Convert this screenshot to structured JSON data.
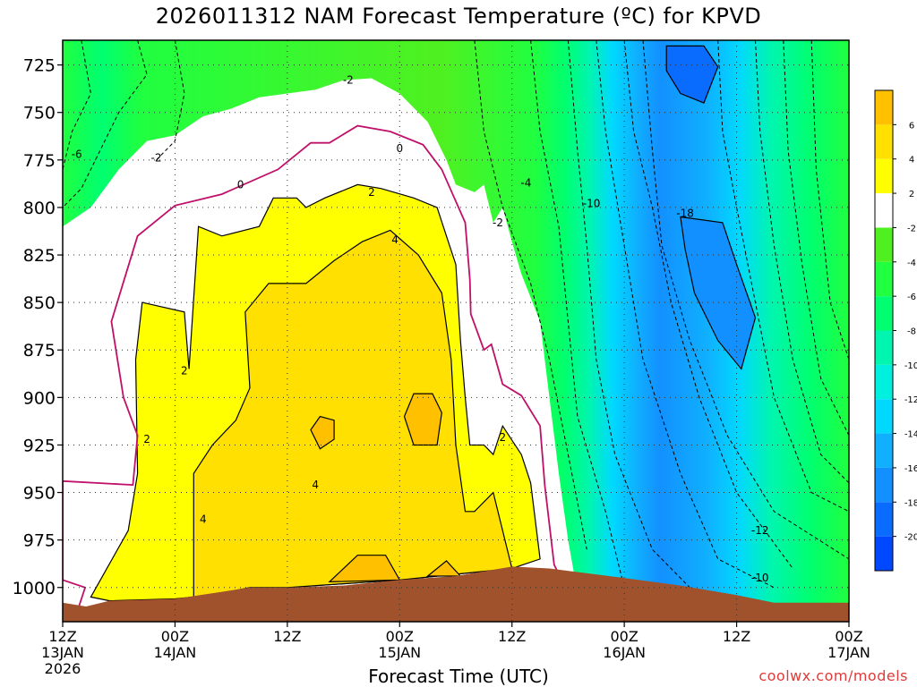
{
  "title": "2026011312 NAM Forecast Temperature (ºC) for KPVD",
  "xaxis_title": "Forecast Time (UTC)",
  "credit": "coolwx.com/models",
  "colors": {
    "ground": "#a0522d",
    "freezing_line": "#c0106a",
    "scale": [
      "#0048ff",
      "#0a6cff",
      "#1290ff",
      "#10b0ff",
      "#00d8ff",
      "#00f0e0",
      "#00f5b0",
      "#00ff70",
      "#20ff40",
      "#50f020",
      "#ffffff",
      "#ffff00",
      "#ffe000",
      "#ffc000"
    ]
  },
  "chart_data": {
    "type": "heatmap",
    "title": "2026011312 NAM Forecast Temperature (ºC) for KPVD",
    "xlabel": "Forecast Time (UTC)",
    "ylabel": "",
    "y_units": "hPa",
    "x_units": "hours",
    "xlim": [
      0,
      84
    ],
    "ylim": [
      712,
      1018
    ],
    "y_ticks": [
      725,
      750,
      775,
      800,
      825,
      850,
      875,
      900,
      925,
      950,
      975,
      1000
    ],
    "x_ticks": [
      {
        "hour": 0,
        "lines": [
          "12Z",
          "13JAN",
          "2026"
        ]
      },
      {
        "hour": 12,
        "lines": [
          "00Z",
          "14JAN"
        ]
      },
      {
        "hour": 24,
        "lines": [
          "12Z"
        ]
      },
      {
        "hour": 36,
        "lines": [
          "00Z",
          "15JAN"
        ]
      },
      {
        "hour": 48,
        "lines": [
          "12Z"
        ]
      },
      {
        "hour": 60,
        "lines": [
          "00Z",
          "16JAN"
        ]
      },
      {
        "hour": 72,
        "lines": [
          "12Z"
        ]
      },
      {
        "hour": 84,
        "lines": [
          "00Z",
          "17JAN"
        ]
      }
    ],
    "grid": true,
    "colorbar": {
      "placement": "right",
      "bounds": [
        -22,
        -20,
        -18,
        -16,
        -14,
        -12,
        -10,
        -8,
        -6,
        -4,
        -2,
        2,
        4,
        6,
        8
      ],
      "labels": [
        "6",
        "4",
        "2",
        "-2",
        "-4",
        "-6",
        "-8",
        "-10",
        "-12",
        "-14",
        "-16",
        "-18",
        "-20"
      ]
    },
    "contour_labels": [
      {
        "text": "-2",
        "hour": 30.5,
        "pressure": 733
      },
      {
        "text": "-2",
        "hour": 10,
        "pressure": 774
      },
      {
        "text": "0",
        "hour": 36,
        "pressure": 769
      },
      {
        "text": "0",
        "hour": 19,
        "pressure": 788
      },
      {
        "text": "2",
        "hour": 33,
        "pressure": 792
      },
      {
        "text": "4",
        "hour": 35.5,
        "pressure": 817
      },
      {
        "text": "2",
        "hour": 13,
        "pressure": 886
      },
      {
        "text": "2",
        "hour": 9,
        "pressure": 922
      },
      {
        "text": "4",
        "hour": 27,
        "pressure": 946
      },
      {
        "text": "4",
        "hour": 15,
        "pressure": 964
      },
      {
        "text": "2",
        "hour": 47,
        "pressure": 921
      },
      {
        "text": "-2",
        "hour": 46.5,
        "pressure": 808
      },
      {
        "text": "-4",
        "hour": 49.5,
        "pressure": 787
      },
      {
        "text": "-6",
        "hour": 1.5,
        "pressure": 772
      },
      {
        "text": "-10",
        "hour": 56.5,
        "pressure": 798
      },
      {
        "text": "-18",
        "hour": 66.5,
        "pressure": 803
      },
      {
        "text": "-12",
        "hour": 74.5,
        "pressure": 970
      },
      {
        "text": "-10",
        "hour": 74.5,
        "pressure": 995
      }
    ],
    "freezing_line": [
      [
        1.2,
        1018
      ],
      [
        2.4,
        1000
      ],
      [
        0.0,
        996
      ],
      [
        0.0,
        944
      ],
      [
        7.5,
        946
      ],
      [
        8.0,
        920
      ],
      [
        6.5,
        900
      ],
      [
        5.2,
        860
      ],
      [
        8.0,
        815
      ],
      [
        12.0,
        799
      ],
      [
        17.0,
        793
      ],
      [
        23.0,
        780
      ],
      [
        26.5,
        766
      ],
      [
        28.5,
        766
      ],
      [
        31.5,
        757
      ],
      [
        35.0,
        760
      ],
      [
        38.5,
        767
      ],
      [
        40.5,
        780
      ],
      [
        43.0,
        808
      ],
      [
        43.5,
        838
      ],
      [
        43.6,
        856
      ],
      [
        45.0,
        875
      ],
      [
        45.8,
        872
      ],
      [
        47.0,
        893
      ],
      [
        49.0,
        899
      ],
      [
        51.0,
        915
      ],
      [
        51.5,
        946
      ],
      [
        52.5,
        988
      ],
      [
        54.0,
        1003
      ]
    ],
    "ground_profile": [
      [
        0,
        1008
      ],
      [
        2.5,
        1010
      ],
      [
        5,
        1007
      ],
      [
        12,
        1006
      ],
      [
        20,
        1000
      ],
      [
        24,
        1000
      ],
      [
        30,
        999
      ],
      [
        36,
        996
      ],
      [
        42,
        994
      ],
      [
        48,
        989
      ],
      [
        52,
        990
      ],
      [
        60,
        995
      ],
      [
        66,
        999
      ],
      [
        72,
        1004
      ],
      [
        76,
        1008
      ],
      [
        84,
        1008
      ]
    ],
    "regions": [
      {
        "value_range": [
          -22,
          -20
        ],
        "color": "#0a6cff",
        "polygon": [
          [
            64.5,
            715
          ],
          [
            68.5,
            715
          ],
          [
            70.0,
            726
          ],
          [
            68.5,
            745
          ],
          [
            66.0,
            740
          ],
          [
            64.5,
            728
          ]
        ]
      },
      {
        "value_range": [
          -20,
          -18
        ],
        "color": "#1290ff",
        "polygon": [
          [
            66.0,
            805
          ],
          [
            70.5,
            808
          ],
          [
            72.0,
            830
          ],
          [
            74.0,
            858
          ],
          [
            72.5,
            885
          ],
          [
            70.0,
            870
          ],
          [
            67.5,
            845
          ],
          [
            66.5,
            822
          ]
        ]
      },
      {
        "value_range": [
          2,
          4
        ],
        "color": "#ffff00",
        "polygon": [
          [
            3.0,
            1005
          ],
          [
            7.0,
            970
          ],
          [
            8.0,
            940
          ],
          [
            7.8,
            880
          ],
          [
            8.5,
            850
          ],
          [
            13.0,
            855
          ],
          [
            13.5,
            885
          ],
          [
            14.5,
            810
          ],
          [
            17.0,
            815
          ],
          [
            21.0,
            810
          ],
          [
            22.5,
            795
          ],
          [
            25.0,
            795
          ],
          [
            26.0,
            800
          ],
          [
            28.0,
            795
          ],
          [
            31.5,
            788
          ],
          [
            34.0,
            790
          ],
          [
            37.5,
            795
          ],
          [
            40.0,
            800
          ],
          [
            41.0,
            815
          ],
          [
            42.0,
            830
          ],
          [
            42.5,
            870
          ],
          [
            43.0,
            900
          ],
          [
            43.5,
            925
          ],
          [
            45.0,
            925
          ],
          [
            46.0,
            930
          ],
          [
            47.0,
            915
          ],
          [
            49.0,
            930
          ],
          [
            50.0,
            945
          ],
          [
            51.0,
            985
          ],
          [
            48.0,
            990
          ],
          [
            36.0,
            996
          ],
          [
            24.0,
            1000
          ],
          [
            12.0,
            1006
          ],
          [
            5.0,
            1007
          ]
        ]
      },
      {
        "value_range": [
          4,
          6
        ],
        "color": "#ffe000",
        "polygon": [
          [
            14.0,
            1006
          ],
          [
            14.0,
            940
          ],
          [
            16.0,
            925
          ],
          [
            18.5,
            912
          ],
          [
            20.0,
            895
          ],
          [
            19.5,
            855
          ],
          [
            22.0,
            840
          ],
          [
            26.0,
            840
          ],
          [
            29.0,
            828
          ],
          [
            32.0,
            818
          ],
          [
            35.0,
            812
          ],
          [
            38.0,
            825
          ],
          [
            40.5,
            845
          ],
          [
            41.5,
            880
          ],
          [
            42.0,
            925
          ],
          [
            43.0,
            960
          ],
          [
            44.0,
            960
          ],
          [
            46.0,
            950
          ],
          [
            48.0,
            990
          ],
          [
            36.0,
            996
          ],
          [
            24.0,
            1000
          ],
          [
            20.0,
            1000
          ]
        ]
      },
      {
        "value_range": [
          6,
          8
        ],
        "color": "#ffc000",
        "polygon": [
          [
            28.5,
            997
          ],
          [
            31.5,
            983
          ],
          [
            34.5,
            983
          ],
          [
            36.0,
            996
          ]
        ]
      },
      {
        "value_range": [
          6,
          8
        ],
        "color": "#ffc000",
        "polygon": [
          [
            39.0,
            994
          ],
          [
            41.0,
            986
          ],
          [
            42.5,
            994
          ]
        ]
      },
      {
        "value_range": [
          6,
          8
        ],
        "color": "#ffc000",
        "polygon": [
          [
            36.5,
            910
          ],
          [
            37.5,
            898
          ],
          [
            39.5,
            898
          ],
          [
            40.5,
            908
          ],
          [
            40.0,
            925
          ],
          [
            37.5,
            925
          ]
        ]
      },
      {
        "value_range": [
          6,
          8
        ],
        "color": "#ffc000",
        "polygon": [
          [
            26.5,
            917
          ],
          [
            27.5,
            910
          ],
          [
            29.0,
            912
          ],
          [
            29.0,
            922
          ],
          [
            27.5,
            927
          ]
        ]
      }
    ]
  }
}
